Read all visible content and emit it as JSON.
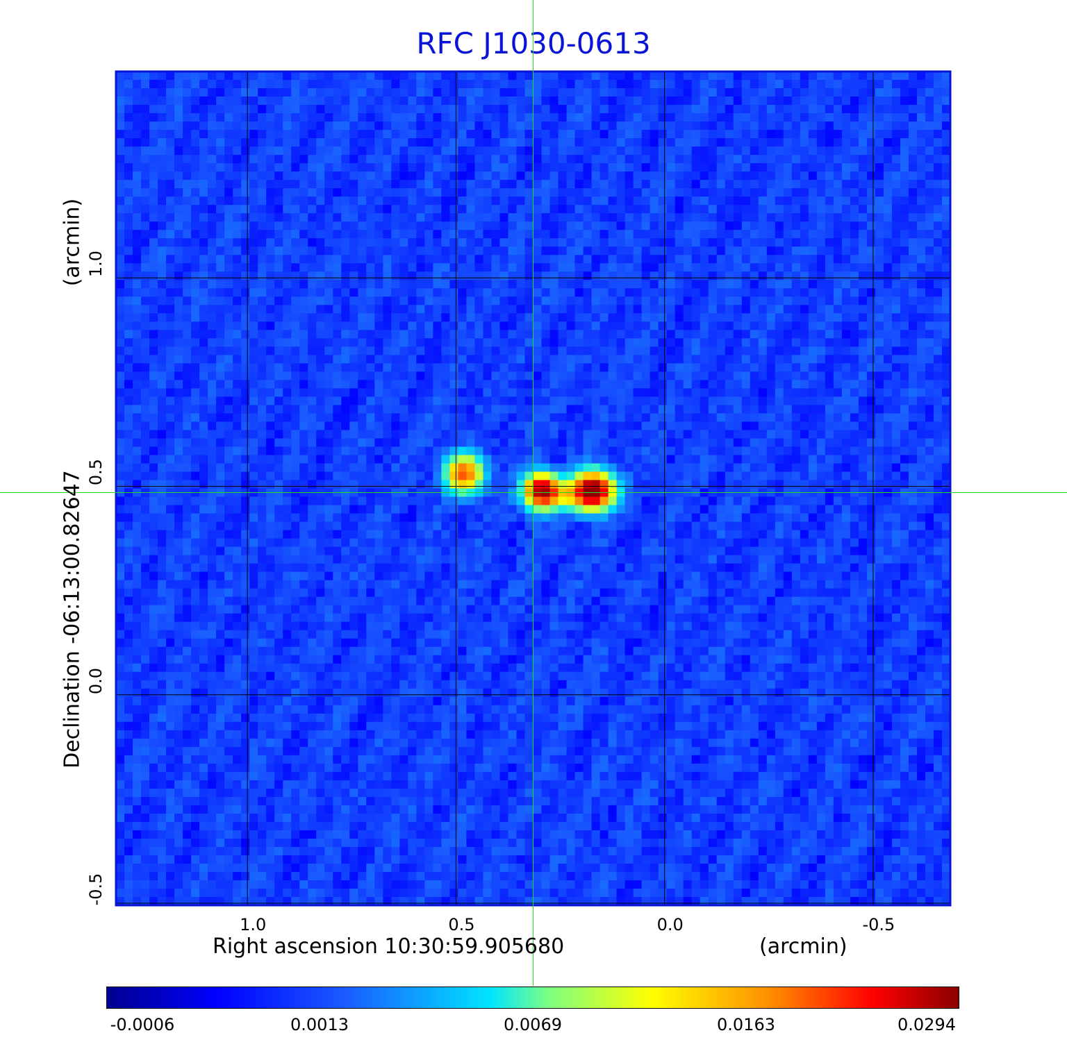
{
  "chart_data": {
    "type": "heatmap",
    "title": "RFC J1030-0613",
    "xlabel": "Right ascension  10:30:59.905680",
    "x_unit": "(arcmin)",
    "ylabel": "Declination  -06:13:00.82647",
    "y_unit": "(arcmin)",
    "x_ticks": [
      "1.0",
      "0.5",
      "0.0",
      "-0.5"
    ],
    "x_tick_values": [
      1.0,
      0.5,
      0.0,
      -0.5
    ],
    "y_ticks": [
      "1.0",
      "0.5",
      "0.0",
      "-0.5"
    ],
    "y_tick_values": [
      1.0,
      0.5,
      0.0,
      -0.5
    ],
    "xlim": [
      1.315,
      -0.685
    ],
    "ylim": [
      -0.505,
      1.495
    ],
    "grid": true,
    "crosshair": {
      "x": 0.315,
      "y": 0.485
    },
    "colormap": "jet",
    "colorbar_ticks": [
      "-0.0006",
      "0.0013",
      "0.0069",
      "0.0163",
      "0.0294"
    ],
    "colorbar_range": [
      -0.0006,
      0.0294
    ],
    "sources": [
      {
        "x": 0.48,
        "y": 0.53,
        "peak": 0.019,
        "sigma_x": 0.028,
        "sigma_y": 0.028
      },
      {
        "x": 0.295,
        "y": 0.49,
        "peak": 0.026,
        "sigma_x": 0.026,
        "sigma_y": 0.026
      },
      {
        "x": 0.17,
        "y": 0.49,
        "peak": 0.0294,
        "sigma_x": 0.03,
        "sigma_y": 0.028
      },
      {
        "x": 0.23,
        "y": 0.48,
        "peak": 0.009,
        "sigma_x": 0.05,
        "sigma_y": 0.022
      }
    ],
    "background_level": 0.0004
  },
  "colors": {
    "title": "#0a14d6",
    "frame": "#0a14d6",
    "crosshair": "#22dd22",
    "grid": "#000000"
  }
}
